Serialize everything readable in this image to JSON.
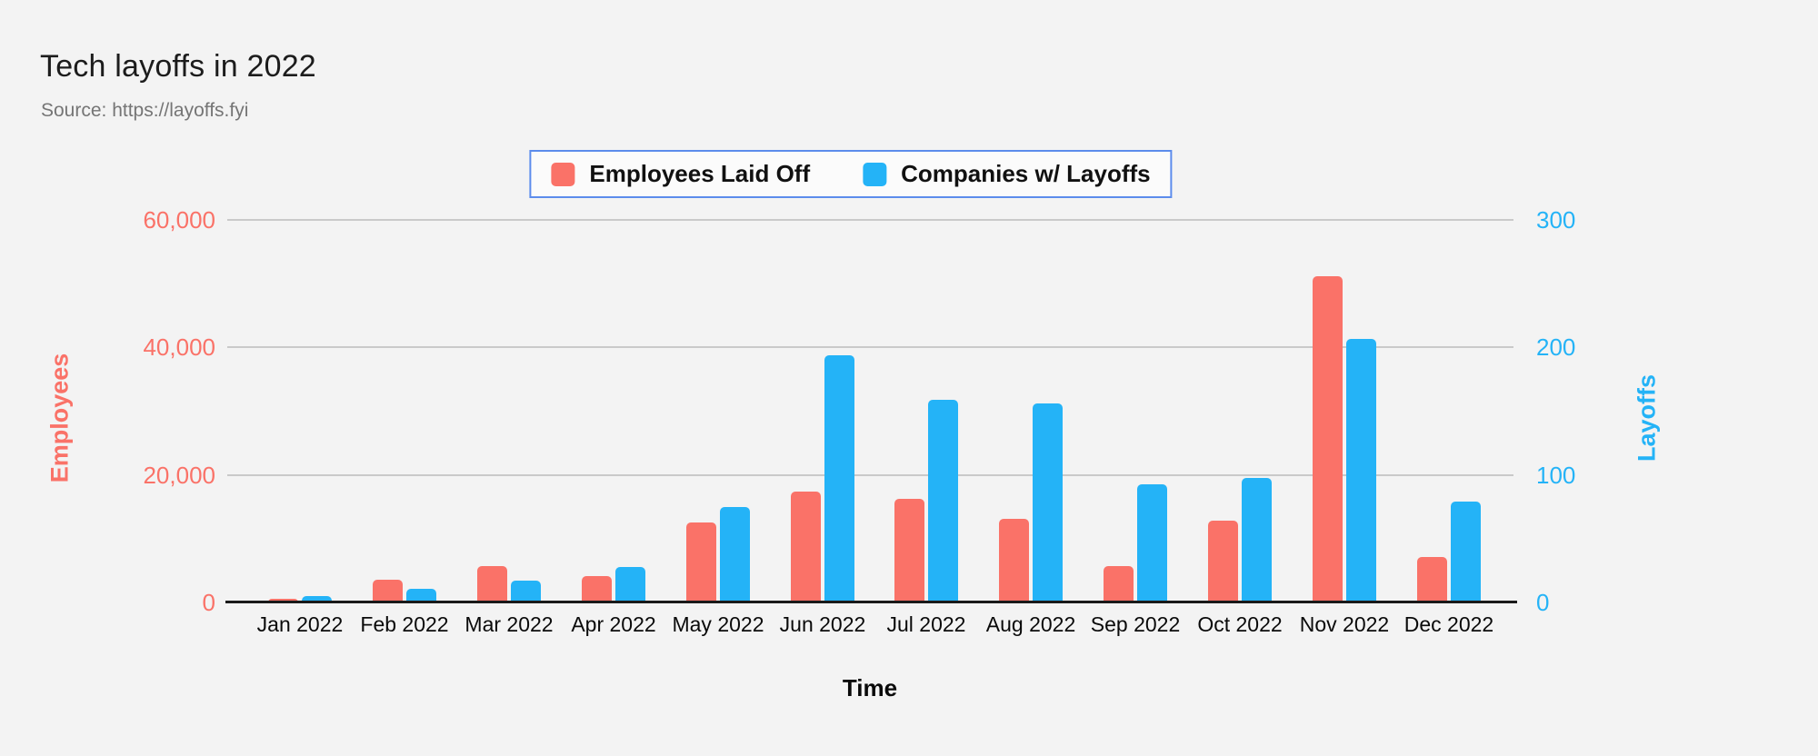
{
  "header": {
    "title": "Tech layoffs in 2022",
    "source": "Source: https://layoffs.fyi"
  },
  "legend": {
    "items": [
      {
        "label": "Employees Laid Off",
        "color": "#fa7268"
      },
      {
        "label": "Companies w/ Layoffs",
        "color": "#24b3f7"
      }
    ],
    "border_color": "#5c8cec"
  },
  "chart_data": {
    "type": "bar",
    "title": "Tech layoffs in 2022",
    "subtitle": "Source: https://layoffs.fyi",
    "xlabel": "Time",
    "grid": true,
    "legend_position": "top",
    "categories": [
      "Jan 2022",
      "Feb 2022",
      "Mar 2022",
      "Apr 2022",
      "May 2022",
      "Jun 2022",
      "Jul 2022",
      "Aug 2022",
      "Sep 2022",
      "Oct 2022",
      "Nov 2022",
      "Dec 2022"
    ],
    "series": [
      {
        "name": "Employees Laid Off",
        "axis": "left",
        "color": "#fa7268",
        "values": [
          600,
          3600,
          5700,
          4100,
          12500,
          17400,
          16200,
          13100,
          5700,
          12900,
          51200,
          7200
        ]
      },
      {
        "name": "Companies w/ Layoffs",
        "axis": "right",
        "color": "#24b3f7",
        "values": [
          5,
          11,
          17,
          28,
          75,
          194,
          159,
          156,
          93,
          98,
          207,
          79
        ]
      }
    ],
    "left_axis": {
      "label": "Employees",
      "ylim": [
        0,
        60000
      ],
      "ticks": [
        0,
        20000,
        40000,
        60000
      ],
      "tick_labels": [
        "0",
        "20,000",
        "40,000",
        "60,000"
      ],
      "color": "#fa7268"
    },
    "right_axis": {
      "label": "Layoffs",
      "ylim": [
        0,
        300
      ],
      "ticks": [
        0,
        100,
        200,
        300
      ],
      "tick_labels": [
        "0",
        "100",
        "200",
        "300"
      ],
      "color": "#24b3f7"
    },
    "colors": {
      "background": "#f3f3f3",
      "gridline": "#c9c9c9",
      "axis_line": "#1a1a1a"
    }
  }
}
